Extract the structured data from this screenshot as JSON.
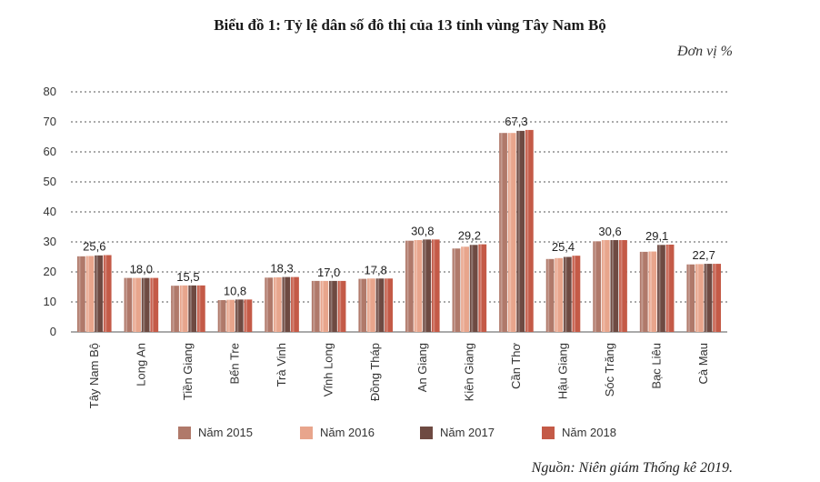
{
  "title": "Biểu đồ 1: Tỷ lệ dân số đô thị của 13 tỉnh vùng Tây Nam Bộ",
  "unit_label": "Đơn vị %",
  "source": "Nguồn: Niên giám Thống kê 2019.",
  "colors": {
    "s2015": "#b0796a",
    "s2016": "#e8a58c",
    "s2017": "#6e4a42",
    "s2018": "#c45a47",
    "grid": "#555555"
  },
  "legend": [
    {
      "label": "Năm 2015",
      "color_key": "s2015"
    },
    {
      "label": "Năm 2016",
      "color_key": "s2016"
    },
    {
      "label": "Năm 2017",
      "color_key": "s2017"
    },
    {
      "label": "Năm 2018",
      "color_key": "s2018"
    }
  ],
  "chart_data": {
    "type": "bar",
    "ylim": [
      0,
      80
    ],
    "yticks": [
      0,
      10,
      20,
      30,
      40,
      50,
      60,
      70,
      80
    ],
    "grid": true,
    "categories": [
      "Tây Nam Bộ",
      "Long An",
      "Tiền Giang",
      "Bến Tre",
      "Trà Vinh",
      "Vĩnh Long",
      "Đồng Tháp",
      "An Giang",
      "Kiên Giang",
      "Cần Thơ",
      "Hậu Giang",
      "Sóc Trăng",
      "Bạc Liêu",
      "Cà Mau"
    ],
    "series": [
      {
        "name": "Năm 2015",
        "values": [
          25.2,
          18.0,
          15.4,
          10.6,
          18.1,
          17.0,
          17.7,
          30.4,
          27.8,
          66.3,
          24.3,
          30.2,
          26.7,
          22.5
        ]
      },
      {
        "name": "Năm 2016",
        "values": [
          25.3,
          18.0,
          15.5,
          10.7,
          18.2,
          17.0,
          17.8,
          30.6,
          28.4,
          66.3,
          24.6,
          30.6,
          26.8,
          22.6
        ]
      },
      {
        "name": "Năm 2017",
        "values": [
          25.5,
          18.0,
          15.5,
          10.8,
          18.3,
          17.0,
          17.8,
          30.8,
          29.0,
          67.0,
          25.0,
          30.6,
          29.0,
          22.7
        ]
      },
      {
        "name": "Năm 2018",
        "values": [
          25.6,
          18.0,
          15.5,
          10.8,
          18.3,
          17.0,
          17.8,
          30.8,
          29.2,
          67.3,
          25.4,
          30.6,
          29.1,
          22.7
        ]
      }
    ],
    "data_labels": [
      "25,6",
      "18,0",
      "15,5",
      "10,8",
      "18,3",
      "17,0",
      "17,8",
      "30,8",
      "29,2",
      "67,3",
      "25,4",
      "30,6",
      "29,1",
      "22,7"
    ]
  }
}
